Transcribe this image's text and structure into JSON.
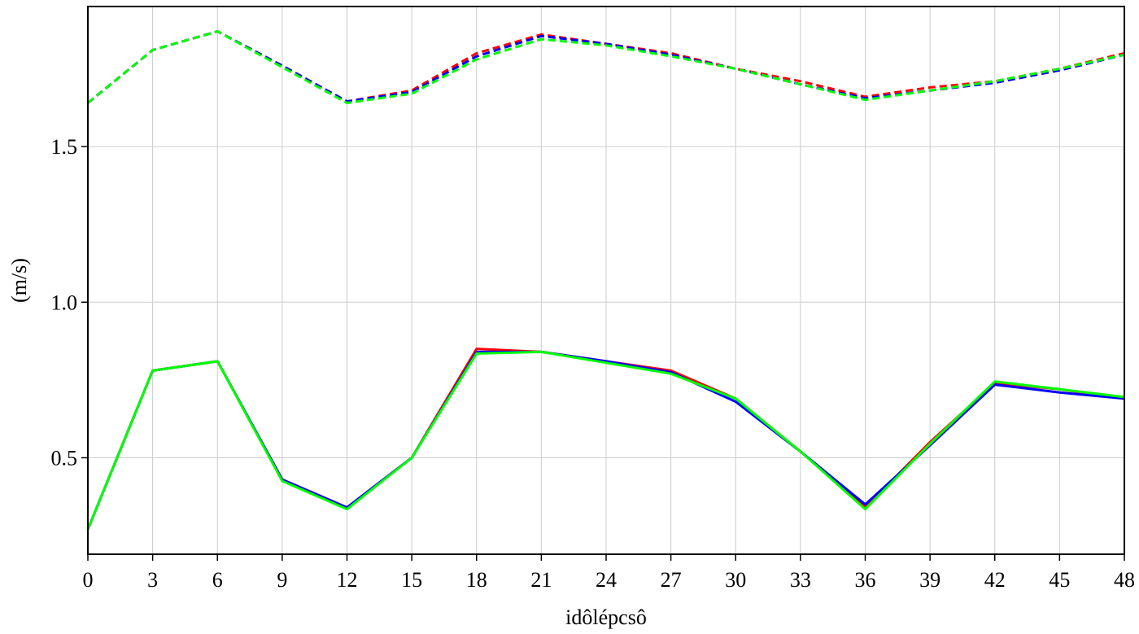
{
  "chart_data": {
    "type": "line",
    "title": "",
    "xlabel": "idôlépcsô",
    "ylabel": "(m/s)",
    "xlim": [
      0,
      48
    ],
    "ylim": [
      0.19,
      1.95
    ],
    "grid": true,
    "legend": "none",
    "x_ticks": [
      0,
      3,
      6,
      9,
      12,
      15,
      18,
      21,
      24,
      27,
      30,
      33,
      36,
      39,
      42,
      45,
      48
    ],
    "y_ticks": [
      0.5,
      1.0,
      1.5
    ],
    "y_tick_labels": [
      "0.5",
      "1.0",
      "1.5"
    ],
    "x": [
      0,
      3,
      6,
      9,
      12,
      15,
      18,
      21,
      24,
      27,
      30,
      33,
      36,
      39,
      42,
      45,
      48
    ],
    "series": [
      {
        "color": "#ff0000",
        "dash": "dashed",
        "values": [
          1.64,
          1.81,
          1.87,
          1.76,
          1.645,
          1.68,
          1.8,
          1.86,
          1.83,
          1.8,
          1.75,
          1.71,
          1.66,
          1.69,
          1.71,
          1.75,
          1.8
        ]
      },
      {
        "color": "#0000ff",
        "dash": "dashed",
        "values": [
          1.64,
          1.81,
          1.87,
          1.76,
          1.645,
          1.675,
          1.79,
          1.855,
          1.83,
          1.795,
          1.75,
          1.7,
          1.655,
          1.68,
          1.705,
          1.745,
          1.795
        ]
      },
      {
        "color": "#00ff00",
        "dash": "dashed",
        "values": [
          1.64,
          1.81,
          1.87,
          1.755,
          1.64,
          1.67,
          1.78,
          1.845,
          1.825,
          1.79,
          1.75,
          1.7,
          1.65,
          1.68,
          1.71,
          1.75,
          1.795
        ]
      },
      {
        "color": "#ff0000",
        "dash": "solid",
        "values": [
          0.27,
          0.78,
          0.81,
          0.43,
          0.34,
          0.5,
          0.85,
          0.84,
          0.81,
          0.78,
          0.69,
          0.52,
          0.34,
          0.55,
          0.74,
          0.72,
          0.69
        ]
      },
      {
        "color": "#0000ff",
        "dash": "solid",
        "values": [
          0.27,
          0.78,
          0.81,
          0.43,
          0.34,
          0.5,
          0.84,
          0.84,
          0.81,
          0.775,
          0.68,
          0.52,
          0.35,
          0.54,
          0.735,
          0.71,
          0.69
        ]
      },
      {
        "color": "#00ff00",
        "dash": "solid",
        "values": [
          0.27,
          0.78,
          0.81,
          0.425,
          0.335,
          0.5,
          0.835,
          0.84,
          0.805,
          0.77,
          0.69,
          0.52,
          0.335,
          0.545,
          0.745,
          0.72,
          0.695
        ]
      }
    ]
  }
}
